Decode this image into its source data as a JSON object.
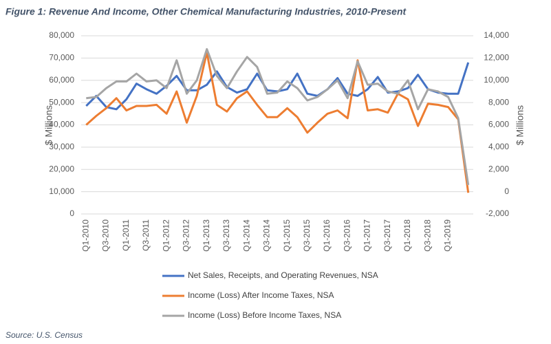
{
  "chart_data": {
    "type": "line",
    "title": "Figure 1: Revenue And Income, Other Chemical Manufacturing Industries, 2010-Present",
    "source": "Source: U.S. Census",
    "ylabel": "$ Millions",
    "y2label": "$ Millions",
    "categories": [
      "Q1-2010",
      null,
      "Q3-2010",
      null,
      "Q1-2011",
      null,
      "Q3-2011",
      null,
      "Q1-2012",
      null,
      "Q3-2012",
      null,
      "Q1-2013",
      null,
      "Q3-2013",
      null,
      "Q1-2014",
      null,
      "Q3-2014",
      null,
      "Q1-2015",
      null,
      "Q3-2015",
      null,
      "Q1-2016",
      null,
      "Q3-2016",
      null,
      "Q1-2017",
      null,
      "Q3-2017",
      null,
      "Q1-2018",
      null,
      "Q3-2018",
      null,
      "Q1-2019",
      null,
      null
    ],
    "series": [
      {
        "name": "Net Sales, Receipts, and Operating Revenues, NSA",
        "color": "#4472c4",
        "axis": "y",
        "values": [
          48500,
          53000,
          48000,
          47000,
          51500,
          58500,
          56000,
          54000,
          57500,
          62000,
          55500,
          55500,
          58000,
          64000,
          57000,
          54500,
          56000,
          63000,
          55500,
          55000,
          56000,
          63000,
          54000,
          53000,
          56000,
          61000,
          54000,
          53000,
          56000,
          61500,
          54500,
          55000,
          56500,
          62500,
          56000,
          54500,
          54000,
          54000,
          68000
        ]
      },
      {
        "name": "Income (Loss) After Income Taxes, NSA",
        "color": "#ed7d31",
        "axis": "y2",
        "values": [
          6000,
          6800,
          7500,
          8400,
          7300,
          7700,
          7700,
          7800,
          7000,
          9000,
          6200,
          8600,
          12500,
          7800,
          7200,
          8400,
          9000,
          7800,
          6700,
          6700,
          7500,
          6700,
          5300,
          6200,
          7000,
          7300,
          6600,
          11800,
          7300,
          7400,
          7100,
          8800,
          8300,
          5900,
          7900,
          7800,
          7600,
          6500,
          -100
        ]
      },
      {
        "name": "Income (Loss) Before Income Taxes, NSA",
        "color": "#a5a5a5",
        "axis": "y2",
        "values": [
          8400,
          8500,
          9300,
          9900,
          9900,
          10600,
          9900,
          10000,
          9300,
          11800,
          8800,
          10000,
          12800,
          10400,
          9300,
          10800,
          12100,
          11200,
          8800,
          8900,
          9900,
          9300,
          8200,
          8500,
          9200,
          10000,
          8400,
          11700,
          9600,
          9700,
          9000,
          8800,
          10000,
          7400,
          9200,
          9000,
          8500,
          6600,
          600
        ]
      }
    ],
    "ylim": [
      0,
      80000
    ],
    "yticks": [
      0,
      {
        "value": 10000,
        "label": "10,000"
      },
      {
        "value": 20000,
        "label": "20,000"
      },
      {
        "value": 30000,
        "label": "30,000"
      },
      {
        "value": 40000,
        "label": "40,000"
      },
      {
        "value": 50000,
        "label": "50,000"
      },
      {
        "value": 60000,
        "label": "60,000"
      },
      {
        "value": 70000,
        "label": "70,000"
      },
      {
        "value": 80000,
        "label": "80,000"
      }
    ],
    "y2lim": [
      -2000,
      14000
    ],
    "y2ticks": [
      {
        "value": -2000,
        "label": "-2,000"
      },
      0,
      {
        "value": 2000,
        "label": "2,000"
      },
      {
        "value": 4000,
        "label": "4,000"
      },
      {
        "value": 6000,
        "label": "6,000"
      },
      {
        "value": 8000,
        "label": "8,000"
      },
      {
        "value": 10000,
        "label": "10,000"
      },
      {
        "value": 12000,
        "label": "12,000"
      },
      {
        "value": 14000,
        "label": "14,000"
      }
    ],
    "grid": true,
    "legend": "bottom"
  }
}
